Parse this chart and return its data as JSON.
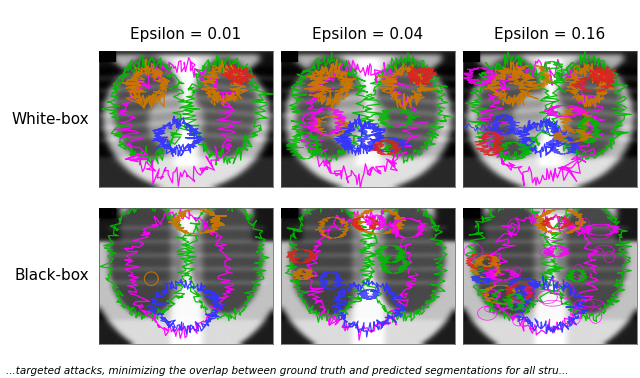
{
  "col_labels": [
    "Epsilon = 0.01",
    "Epsilon = 0.04",
    "Epsilon = 0.16"
  ],
  "row_labels": [
    "White-box",
    "Black-box"
  ],
  "caption": "...targeted attacks, minimizing the overlap between ground truth and predicted segmentations for all stru...",
  "background_color": "#ffffff",
  "label_fontsize": 11,
  "col_label_fontsize": 11,
  "caption_fontsize": 7.5,
  "fig_width": 6.4,
  "fig_height": 3.78
}
